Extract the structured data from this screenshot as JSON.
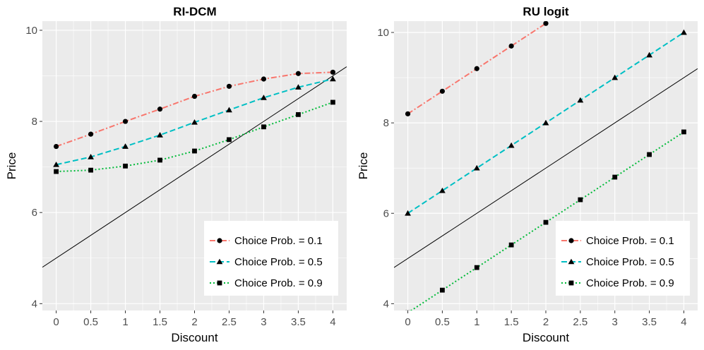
{
  "chart_data": [
    {
      "type": "line",
      "title": "RI-DCM",
      "xlabel": "Discount",
      "ylabel": "Price",
      "xlim": [
        -0.2,
        4.2
      ],
      "ylim": [
        3.85,
        10.2
      ],
      "x_ticks": [
        0,
        0.5,
        1,
        1.5,
        2,
        2.5,
        3,
        3.5,
        4
      ],
      "x_tick_labels": [
        "0",
        "0.5",
        "1",
        "1.5",
        "2",
        "2.5",
        "3",
        "3.5",
        "4"
      ],
      "y_ticks": [
        4,
        6,
        8,
        10
      ],
      "y_tick_labels": [
        "4",
        "6",
        "8",
        "10"
      ],
      "grid": true,
      "legend_position": "bottom-right",
      "reference_line": {
        "intercept": 5,
        "slope": 1,
        "color": "#000000"
      },
      "series": [
        {
          "name": "Choice Prob. = 0.1",
          "color": "#F8766D",
          "dash": "8,3,2,3",
          "marker": "circle",
          "x": [
            0,
            0.5,
            1,
            1.5,
            2,
            2.5,
            3,
            3.5,
            4
          ],
          "y": [
            7.45,
            7.72,
            8.0,
            8.27,
            8.55,
            8.77,
            8.93,
            9.05,
            9.08
          ]
        },
        {
          "name": "Choice Prob. = 0.5",
          "color": "#00BFC4",
          "dash": "8,4",
          "marker": "triangle",
          "x": [
            0,
            0.5,
            1,
            1.5,
            2,
            2.5,
            3,
            3.5,
            4
          ],
          "y": [
            7.05,
            7.22,
            7.45,
            7.7,
            7.98,
            8.25,
            8.52,
            8.75,
            8.93
          ]
        },
        {
          "name": "Choice Prob. = 0.9",
          "color": "#00BA38",
          "dash": "2,3",
          "marker": "square",
          "x": [
            0,
            0.5,
            1,
            1.5,
            2,
            2.5,
            3,
            3.5,
            4
          ],
          "y": [
            6.9,
            6.93,
            7.02,
            7.15,
            7.35,
            7.6,
            7.88,
            8.15,
            8.42
          ]
        }
      ]
    },
    {
      "type": "line",
      "title": "RU logit",
      "xlabel": "Discount",
      "ylabel": "Price",
      "xlim": [
        -0.2,
        4.2
      ],
      "ylim": [
        3.85,
        10.25
      ],
      "x_ticks": [
        0,
        0.5,
        1,
        1.5,
        2,
        2.5,
        3,
        3.5,
        4
      ],
      "x_tick_labels": [
        "0",
        "0.5",
        "1",
        "1.5",
        "2",
        "2.5",
        "3",
        "3.5",
        "4"
      ],
      "y_ticks": [
        4,
        6,
        8,
        10
      ],
      "y_tick_labels": [
        "4",
        "6",
        "8",
        "10"
      ],
      "grid": true,
      "legend_position": "bottom-right",
      "reference_line": {
        "intercept": 5,
        "slope": 1,
        "color": "#000000"
      },
      "series": [
        {
          "name": "Choice Prob. = 0.1",
          "color": "#F8766D",
          "dash": "8,3,2,3",
          "marker": "circle",
          "x": [
            0,
            0.5,
            1,
            1.5,
            2
          ],
          "y": [
            8.2,
            8.7,
            9.2,
            9.7,
            10.2
          ]
        },
        {
          "name": "Choice Prob. = 0.5",
          "color": "#00BFC4",
          "dash": "8,4",
          "marker": "triangle",
          "x": [
            0,
            0.5,
            1,
            1.5,
            2,
            2.5,
            3,
            3.5,
            4
          ],
          "y": [
            6.0,
            6.5,
            7.0,
            7.5,
            8.0,
            8.5,
            9.0,
            9.5,
            10.0
          ]
        },
        {
          "name": "Choice Prob. = 0.9",
          "color": "#00BA38",
          "dash": "2,3",
          "marker": "square",
          "x": [
            0,
            0.5,
            1,
            1.5,
            2,
            2.5,
            3,
            3.5,
            4
          ],
          "y": [
            3.8,
            4.3,
            4.8,
            5.3,
            5.8,
            6.3,
            6.8,
            7.3,
            7.8
          ]
        }
      ]
    }
  ]
}
